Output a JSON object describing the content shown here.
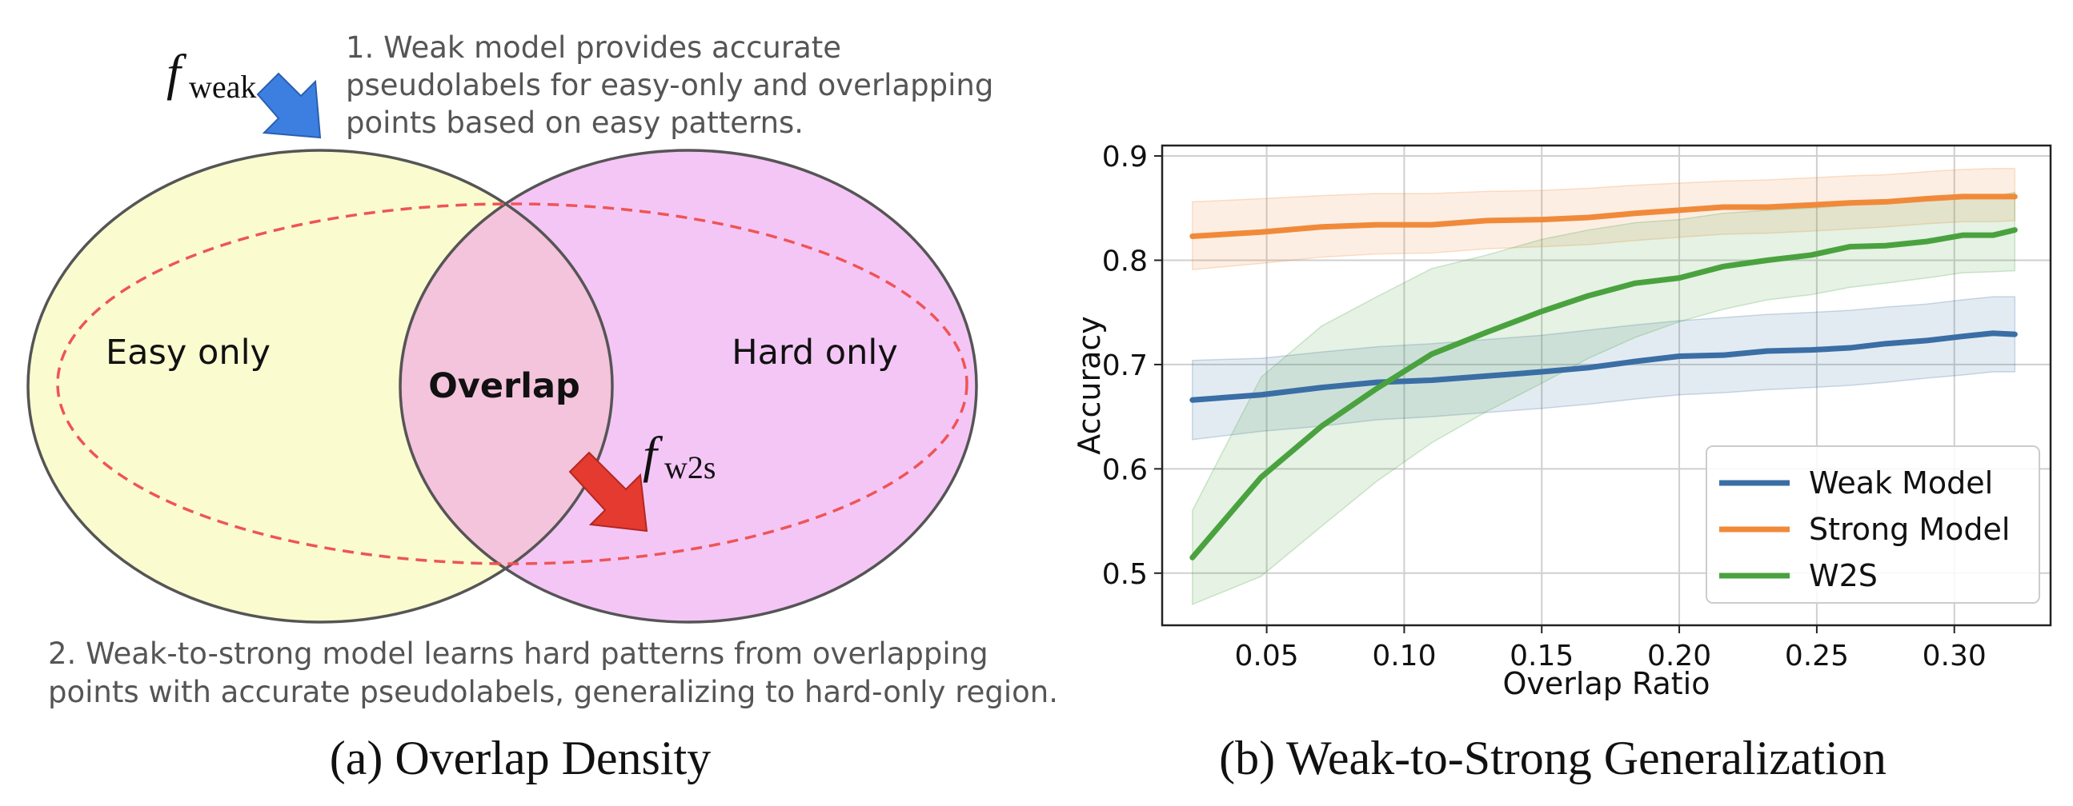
{
  "panel_a": {
    "note1_lines": [
      "1. Weak model provides accurate",
      "pseudolabels for easy-only and overlapping",
      "points based on easy patterns."
    ],
    "note2_lines": [
      "2. Weak-to-strong model learns hard patterns from overlapping",
      "points with accurate pseudolabels, generalizing to hard-only region."
    ],
    "f_weak": {
      "base": "f",
      "sub": "weak"
    },
    "f_w2s": {
      "base": "f",
      "sub": "w2s"
    },
    "label_easy": "Easy only",
    "label_overlap": "Overlap",
    "label_hard": "Hard only",
    "caption": "(a) Overlap Density",
    "colors": {
      "easy": "#fbfbd0",
      "hard": "#f4c6f6",
      "overlap": "#f4c3dc",
      "dashed": "#ee5555",
      "arrow_weak": "#3d7fe0",
      "arrow_w2s": "#e53a30"
    }
  },
  "panel_b": {
    "caption": "(b) Weak-to-Strong Generalization"
  },
  "chart_data": {
    "type": "line",
    "xlabel": "Overlap Ratio",
    "ylabel": "Accuracy",
    "xlim": [
      0.012,
      0.335
    ],
    "ylim": [
      0.45,
      0.91
    ],
    "xticks": [
      "0.05",
      "0.10",
      "0.15",
      "0.20",
      "0.25",
      "0.30"
    ],
    "xtick_values": [
      0.05,
      0.1,
      0.15,
      0.2,
      0.25,
      0.3
    ],
    "yticks": [
      "0.5",
      "0.6",
      "0.7",
      "0.8",
      "0.9"
    ],
    "ytick_values": [
      0.5,
      0.6,
      0.7,
      0.8,
      0.9
    ],
    "grid": true,
    "legend_position": "lower-right",
    "x": [
      0.023,
      0.048,
      0.07,
      0.09,
      0.11,
      0.13,
      0.15,
      0.167,
      0.184,
      0.2,
      0.216,
      0.232,
      0.248,
      0.262,
      0.275,
      0.29,
      0.303,
      0.314,
      0.322
    ],
    "series": [
      {
        "name": "Weak Model",
        "color": "#3a6ea5",
        "values": [
          0.666,
          0.671,
          0.678,
          0.683,
          0.685,
          0.689,
          0.693,
          0.697,
          0.703,
          0.708,
          0.709,
          0.713,
          0.714,
          0.716,
          0.72,
          0.723,
          0.727,
          0.73,
          0.729
        ],
        "lower": [
          0.628,
          0.636,
          0.641,
          0.647,
          0.65,
          0.654,
          0.658,
          0.662,
          0.667,
          0.671,
          0.673,
          0.676,
          0.678,
          0.68,
          0.683,
          0.687,
          0.69,
          0.693,
          0.693
        ],
        "upper": [
          0.704,
          0.706,
          0.712,
          0.717,
          0.72,
          0.724,
          0.728,
          0.733,
          0.738,
          0.742,
          0.745,
          0.748,
          0.75,
          0.752,
          0.755,
          0.758,
          0.762,
          0.765,
          0.765
        ]
      },
      {
        "name": "Strong Model",
        "color": "#f08a3a",
        "values": [
          0.823,
          0.827,
          0.832,
          0.834,
          0.834,
          0.838,
          0.839,
          0.841,
          0.845,
          0.848,
          0.851,
          0.851,
          0.853,
          0.855,
          0.856,
          0.859,
          0.861,
          0.861,
          0.861
        ],
        "lower": [
          0.791,
          0.797,
          0.803,
          0.806,
          0.807,
          0.811,
          0.813,
          0.815,
          0.819,
          0.822,
          0.825,
          0.826,
          0.828,
          0.83,
          0.832,
          0.835,
          0.837,
          0.837,
          0.838
        ],
        "upper": [
          0.856,
          0.859,
          0.862,
          0.864,
          0.864,
          0.866,
          0.867,
          0.869,
          0.872,
          0.874,
          0.876,
          0.877,
          0.879,
          0.881,
          0.882,
          0.885,
          0.887,
          0.888,
          0.888
        ]
      },
      {
        "name": "W2S",
        "color": "#4aa23f",
        "values": [
          0.515,
          0.592,
          0.641,
          0.677,
          0.71,
          0.731,
          0.751,
          0.766,
          0.778,
          0.783,
          0.794,
          0.8,
          0.805,
          0.813,
          0.814,
          0.818,
          0.824,
          0.824,
          0.829
        ],
        "lower": [
          0.47,
          0.497,
          0.545,
          0.588,
          0.625,
          0.655,
          0.682,
          0.706,
          0.726,
          0.741,
          0.753,
          0.762,
          0.767,
          0.774,
          0.778,
          0.783,
          0.788,
          0.789,
          0.79
        ],
        "upper": [
          0.56,
          0.688,
          0.737,
          0.765,
          0.792,
          0.805,
          0.82,
          0.829,
          0.836,
          0.839,
          0.845,
          0.848,
          0.85,
          0.853,
          0.855,
          0.857,
          0.86,
          0.861,
          0.865
        ]
      }
    ]
  }
}
